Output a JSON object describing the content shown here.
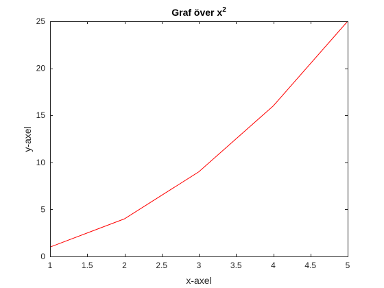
{
  "chart_data": {
    "type": "line",
    "title": "Graf över x",
    "title_superscript": "2",
    "xlabel": "x-axel",
    "ylabel": "y-axel",
    "xlim": [
      1,
      5
    ],
    "ylim": [
      0,
      25
    ],
    "xticks": [
      1,
      1.5,
      2,
      2.5,
      3,
      3.5,
      4,
      4.5,
      5
    ],
    "yticks": [
      0,
      5,
      10,
      15,
      20,
      25
    ],
    "grid": false,
    "legend": "none",
    "series": [
      {
        "color": "#ff0000",
        "x": [
          1,
          2,
          3,
          4,
          5
        ],
        "y": [
          1,
          4,
          9,
          16,
          25
        ]
      }
    ]
  },
  "colors": {
    "axes": "#262626",
    "background": "#ffffff"
  }
}
